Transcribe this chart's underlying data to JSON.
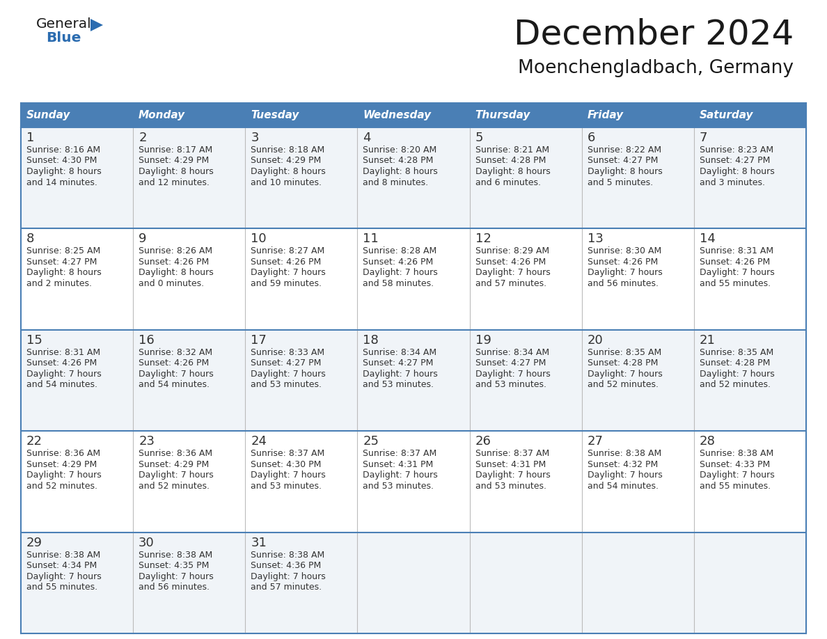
{
  "title": "December 2024",
  "subtitle": "Moenchengladbach, Germany",
  "header_bg_color": "#4a7fb5",
  "header_text_color": "#ffffff",
  "row_bg_even": "#f0f4f8",
  "row_bg_odd": "#ffffff",
  "border_color": "#4a7fb5",
  "text_color": "#333333",
  "days_of_week": [
    "Sunday",
    "Monday",
    "Tuesday",
    "Wednesday",
    "Thursday",
    "Friday",
    "Saturday"
  ],
  "weeks": [
    [
      {
        "day": "1",
        "sunrise": "8:16 AM",
        "sunset": "4:30 PM",
        "daylight_h": "8 hours",
        "daylight_m": "and 14 minutes."
      },
      {
        "day": "2",
        "sunrise": "8:17 AM",
        "sunset": "4:29 PM",
        "daylight_h": "8 hours",
        "daylight_m": "and 12 minutes."
      },
      {
        "day": "3",
        "sunrise": "8:18 AM",
        "sunset": "4:29 PM",
        "daylight_h": "8 hours",
        "daylight_m": "and 10 minutes."
      },
      {
        "day": "4",
        "sunrise": "8:20 AM",
        "sunset": "4:28 PM",
        "daylight_h": "8 hours",
        "daylight_m": "and 8 minutes."
      },
      {
        "day": "5",
        "sunrise": "8:21 AM",
        "sunset": "4:28 PM",
        "daylight_h": "8 hours",
        "daylight_m": "and 6 minutes."
      },
      {
        "day": "6",
        "sunrise": "8:22 AM",
        "sunset": "4:27 PM",
        "daylight_h": "8 hours",
        "daylight_m": "and 5 minutes."
      },
      {
        "day": "7",
        "sunrise": "8:23 AM",
        "sunset": "4:27 PM",
        "daylight_h": "8 hours",
        "daylight_m": "and 3 minutes."
      }
    ],
    [
      {
        "day": "8",
        "sunrise": "8:25 AM",
        "sunset": "4:27 PM",
        "daylight_h": "8 hours",
        "daylight_m": "and 2 minutes."
      },
      {
        "day": "9",
        "sunrise": "8:26 AM",
        "sunset": "4:26 PM",
        "daylight_h": "8 hours",
        "daylight_m": "and 0 minutes."
      },
      {
        "day": "10",
        "sunrise": "8:27 AM",
        "sunset": "4:26 PM",
        "daylight_h": "7 hours",
        "daylight_m": "and 59 minutes."
      },
      {
        "day": "11",
        "sunrise": "8:28 AM",
        "sunset": "4:26 PM",
        "daylight_h": "7 hours",
        "daylight_m": "and 58 minutes."
      },
      {
        "day": "12",
        "sunrise": "8:29 AM",
        "sunset": "4:26 PM",
        "daylight_h": "7 hours",
        "daylight_m": "and 57 minutes."
      },
      {
        "day": "13",
        "sunrise": "8:30 AM",
        "sunset": "4:26 PM",
        "daylight_h": "7 hours",
        "daylight_m": "and 56 minutes."
      },
      {
        "day": "14",
        "sunrise": "8:31 AM",
        "sunset": "4:26 PM",
        "daylight_h": "7 hours",
        "daylight_m": "and 55 minutes."
      }
    ],
    [
      {
        "day": "15",
        "sunrise": "8:31 AM",
        "sunset": "4:26 PM",
        "daylight_h": "7 hours",
        "daylight_m": "and 54 minutes."
      },
      {
        "day": "16",
        "sunrise": "8:32 AM",
        "sunset": "4:26 PM",
        "daylight_h": "7 hours",
        "daylight_m": "and 54 minutes."
      },
      {
        "day": "17",
        "sunrise": "8:33 AM",
        "sunset": "4:27 PM",
        "daylight_h": "7 hours",
        "daylight_m": "and 53 minutes."
      },
      {
        "day": "18",
        "sunrise": "8:34 AM",
        "sunset": "4:27 PM",
        "daylight_h": "7 hours",
        "daylight_m": "and 53 minutes."
      },
      {
        "day": "19",
        "sunrise": "8:34 AM",
        "sunset": "4:27 PM",
        "daylight_h": "7 hours",
        "daylight_m": "and 53 minutes."
      },
      {
        "day": "20",
        "sunrise": "8:35 AM",
        "sunset": "4:28 PM",
        "daylight_h": "7 hours",
        "daylight_m": "and 52 minutes."
      },
      {
        "day": "21",
        "sunrise": "8:35 AM",
        "sunset": "4:28 PM",
        "daylight_h": "7 hours",
        "daylight_m": "and 52 minutes."
      }
    ],
    [
      {
        "day": "22",
        "sunrise": "8:36 AM",
        "sunset": "4:29 PM",
        "daylight_h": "7 hours",
        "daylight_m": "and 52 minutes."
      },
      {
        "day": "23",
        "sunrise": "8:36 AM",
        "sunset": "4:29 PM",
        "daylight_h": "7 hours",
        "daylight_m": "and 52 minutes."
      },
      {
        "day": "24",
        "sunrise": "8:37 AM",
        "sunset": "4:30 PM",
        "daylight_h": "7 hours",
        "daylight_m": "and 53 minutes."
      },
      {
        "day": "25",
        "sunrise": "8:37 AM",
        "sunset": "4:31 PM",
        "daylight_h": "7 hours",
        "daylight_m": "and 53 minutes."
      },
      {
        "day": "26",
        "sunrise": "8:37 AM",
        "sunset": "4:31 PM",
        "daylight_h": "7 hours",
        "daylight_m": "and 53 minutes."
      },
      {
        "day": "27",
        "sunrise": "8:38 AM",
        "sunset": "4:32 PM",
        "daylight_h": "7 hours",
        "daylight_m": "and 54 minutes."
      },
      {
        "day": "28",
        "sunrise": "8:38 AM",
        "sunset": "4:33 PM",
        "daylight_h": "7 hours",
        "daylight_m": "and 55 minutes."
      }
    ],
    [
      {
        "day": "29",
        "sunrise": "8:38 AM",
        "sunset": "4:34 PM",
        "daylight_h": "7 hours",
        "daylight_m": "and 55 minutes."
      },
      {
        "day": "30",
        "sunrise": "8:38 AM",
        "sunset": "4:35 PM",
        "daylight_h": "7 hours",
        "daylight_m": "and 56 minutes."
      },
      {
        "day": "31",
        "sunrise": "8:38 AM",
        "sunset": "4:36 PM",
        "daylight_h": "7 hours",
        "daylight_m": "and 57 minutes."
      },
      null,
      null,
      null,
      null
    ]
  ]
}
